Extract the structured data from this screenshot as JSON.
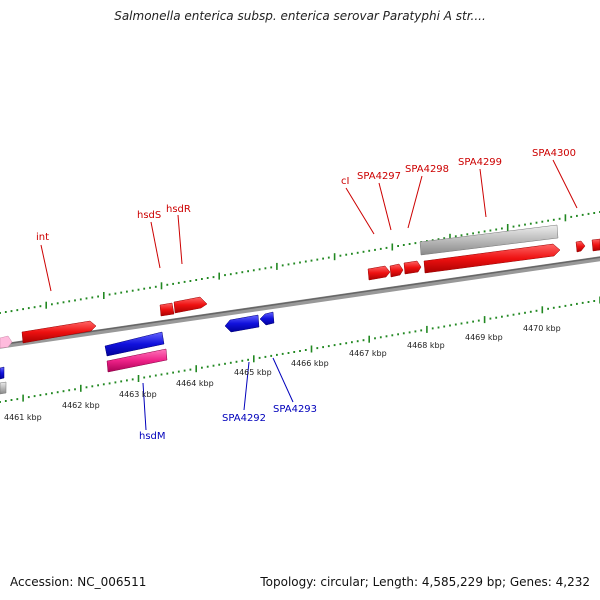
{
  "title": "Salmonella enterica subsp. enterica serovar Paratyphi A str....",
  "footer": {
    "accession": "Accession: NC_006511",
    "summary": "Topology: circular; Length: 4,585,229 bp; Genes: 4,232"
  },
  "scale_labels": [
    "4461 kbp",
    "4462 kbp",
    "4463 kbp",
    "4464 kbp",
    "4465 kbp",
    "4466 kbp",
    "4467 kbp",
    "4468 kbp",
    "4469 kbp",
    "4470 kbp"
  ],
  "gene_labels_forward": [
    "int",
    "hsdS",
    "hsdR",
    "cI",
    "SPA4297",
    "SPA4298",
    "SPA4299",
    "SPA4300"
  ],
  "gene_labels_reverse": [
    "hsdM",
    "SPA4292",
    "SPA4293"
  ],
  "colors": {
    "forward_gene": "#ee1111",
    "reverse_gene": "#1111dd",
    "pseudo_gene": "#bbbbbb",
    "rna_gene": "#ee2288",
    "backbone": "#888888",
    "tick": "#228822",
    "label_forward": "#cc0000",
    "label_reverse": "#0000bb"
  }
}
